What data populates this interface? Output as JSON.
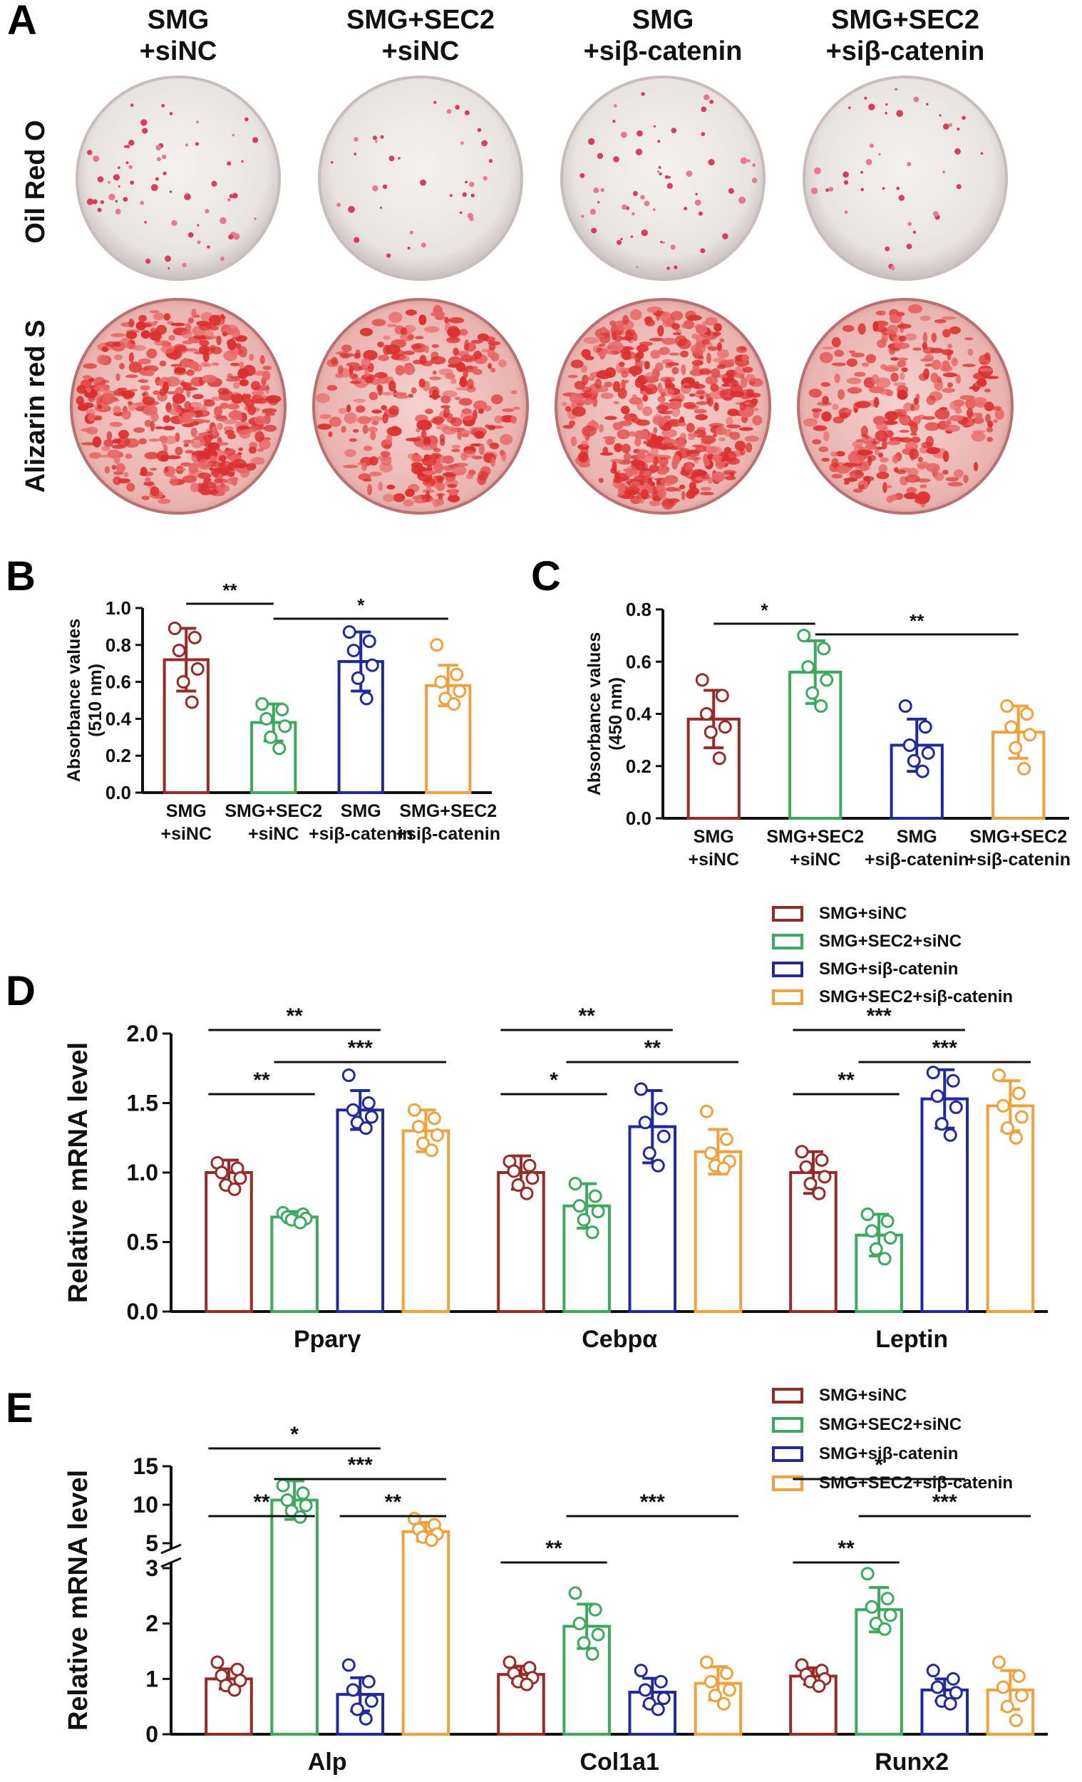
{
  "colors": {
    "siNC": "#9b2a26",
    "sec2": "#3aaa5c",
    "sibcat": "#1f2aa0",
    "sec2sibcat": "#f2a13a",
    "axis": "#111111"
  },
  "panelA": {
    "letter": "A",
    "columns": [
      [
        "SMG",
        "+siNC"
      ],
      [
        "SMG+SEC2",
        "+siNC"
      ],
      [
        "SMG",
        "+siβ-catenin"
      ],
      [
        "SMG+SEC2",
        "+siβ-catenin"
      ]
    ],
    "rows": [
      "Oil Red O",
      "Alizarin red S"
    ],
    "images": [
      {
        "row": 0,
        "stain": "oil-red-o",
        "density": 0.55
      },
      {
        "row": 0,
        "stain": "oil-red-o",
        "density": 0.3
      },
      {
        "row": 0,
        "stain": "oil-red-o",
        "density": 0.5
      },
      {
        "row": 0,
        "stain": "oil-red-o",
        "density": 0.35
      },
      {
        "row": 1,
        "stain": "alizarin-red-s",
        "density": 0.85
      },
      {
        "row": 1,
        "stain": "alizarin-red-s",
        "density": 0.6
      },
      {
        "row": 1,
        "stain": "alizarin-red-s",
        "density": 0.9
      },
      {
        "row": 1,
        "stain": "alizarin-red-s",
        "density": 0.55
      }
    ]
  },
  "chart_data": [
    {
      "panel": "B",
      "type": "bar",
      "ylabel": "Absorbance values (510 nm)",
      "ylim": [
        0,
        1.0
      ],
      "yticks": [
        "0.0",
        "0.2",
        "0.4",
        "0.6",
        "0.8",
        "1.0"
      ],
      "categories": [
        [
          "SMG",
          "+siNC"
        ],
        [
          "SMG+SEC2",
          "+siNC"
        ],
        [
          "SMG",
          "+siβ-catenin"
        ],
        [
          "SMG+SEC2",
          "+siβ-catenin"
        ]
      ],
      "values": [
        0.72,
        0.38,
        0.71,
        0.58
      ],
      "errors": [
        0.17,
        0.1,
        0.16,
        0.11
      ],
      "points": [
        [
          0.89,
          0.84,
          0.77,
          0.67,
          0.6,
          0.49
        ],
        [
          0.48,
          0.45,
          0.4,
          0.36,
          0.3,
          0.24
        ],
        [
          0.87,
          0.82,
          0.77,
          0.69,
          0.62,
          0.51
        ],
        [
          0.8,
          0.64,
          0.6,
          0.55,
          0.51,
          0.48
        ]
      ],
      "significance": [
        {
          "from": 0,
          "to": 1,
          "label": "**"
        },
        {
          "from": 1,
          "to": 3,
          "label": "*"
        }
      ]
    },
    {
      "panel": "C",
      "type": "bar",
      "ylabel": "Absorbance values (450 nm)",
      "ylim": [
        0,
        0.8
      ],
      "yticks": [
        "0.0",
        "0.2",
        "0.4",
        "0.6",
        "0.8"
      ],
      "categories": [
        [
          "SMG",
          "+siNC"
        ],
        [
          "SMG+SEC2",
          "+siNC"
        ],
        [
          "SMG",
          "+siβ-catenin"
        ],
        [
          "SMG+SEC2",
          "+siβ-catenin"
        ]
      ],
      "values": [
        0.38,
        0.56,
        0.28,
        0.33
      ],
      "errors": [
        0.11,
        0.12,
        0.1,
        0.1
      ],
      "points": [
        [
          0.53,
          0.47,
          0.4,
          0.35,
          0.33,
          0.23
        ],
        [
          0.7,
          0.65,
          0.58,
          0.53,
          0.48,
          0.43
        ],
        [
          0.43,
          0.35,
          0.28,
          0.25,
          0.22,
          0.18
        ],
        [
          0.43,
          0.4,
          0.35,
          0.32,
          0.27,
          0.19
        ]
      ],
      "significance": [
        {
          "from": 0,
          "to": 1,
          "label": "*"
        },
        {
          "from": 1,
          "to": 3,
          "label": "**"
        }
      ]
    },
    {
      "panel": "D",
      "type": "bar",
      "ylabel": "Relative mRNA level",
      "ylim": [
        0,
        2.0
      ],
      "yticks": [
        "0.0",
        "0.5",
        "1.0",
        "1.5",
        "2.0"
      ],
      "groups": [
        "Pparγ",
        "Cebpα",
        "Leptin"
      ],
      "series": [
        {
          "name": "SMG+siNC",
          "values": [
            1.0,
            1.0,
            1.0
          ],
          "errors": [
            0.09,
            0.12,
            0.15
          ],
          "points": [
            [
              1.07,
              1.03,
              1.0,
              0.96,
              0.91,
              0.88
            ],
            [
              1.08,
              1.05,
              1.01,
              0.96,
              0.91,
              0.85
            ],
            [
              1.15,
              1.09,
              1.04,
              0.97,
              0.92,
              0.85
            ]
          ]
        },
        {
          "name": "SMG+SEC2+siNC",
          "values": [
            0.68,
            0.76,
            0.55
          ],
          "errors": [
            0.04,
            0.16,
            0.15
          ],
          "points": [
            [
              0.71,
              0.7,
              0.68,
              0.67,
              0.66,
              0.64
            ],
            [
              0.92,
              0.83,
              0.76,
              0.72,
              0.66,
              0.57
            ],
            [
              0.7,
              0.65,
              0.58,
              0.53,
              0.45,
              0.38
            ]
          ]
        },
        {
          "name": "SMG+siβ-catenin",
          "values": [
            1.45,
            1.33,
            1.53
          ],
          "errors": [
            0.14,
            0.26,
            0.21
          ],
          "points": [
            [
              1.7,
              1.5,
              1.45,
              1.4,
              1.36,
              1.32
            ],
            [
              1.6,
              1.46,
              1.36,
              1.26,
              1.14,
              1.05
            ],
            [
              1.72,
              1.66,
              1.55,
              1.47,
              1.35,
              1.27
            ]
          ]
        },
        {
          "name": "SMG+SEC2+siβ-catenin",
          "values": [
            1.3,
            1.15,
            1.48
          ],
          "errors": [
            0.15,
            0.16,
            0.18
          ],
          "points": [
            [
              1.45,
              1.39,
              1.33,
              1.27,
              1.21,
              1.16
            ],
            [
              1.44,
              1.24,
              1.14,
              1.08,
              1.05,
              1.03
            ],
            [
              1.7,
              1.57,
              1.48,
              1.4,
              1.32,
              1.25
            ]
          ]
        }
      ],
      "significance": [
        {
          "group": 0,
          "from": 0,
          "to": 2,
          "label": "**",
          "level": 2
        },
        {
          "group": 0,
          "from": 1,
          "to": 3,
          "label": "***",
          "level": 1
        },
        {
          "group": 0,
          "from": 0,
          "to": 1,
          "label": "**",
          "level": 0
        },
        {
          "group": 1,
          "from": 0,
          "to": 2,
          "label": "**",
          "level": 2
        },
        {
          "group": 1,
          "from": 1,
          "to": 3,
          "label": "**",
          "level": 1
        },
        {
          "group": 1,
          "from": 0,
          "to": 1,
          "label": "*",
          "level": 0
        },
        {
          "group": 2,
          "from": 0,
          "to": 2,
          "label": "***",
          "level": 2
        },
        {
          "group": 2,
          "from": 1,
          "to": 3,
          "label": "***",
          "level": 1
        },
        {
          "group": 2,
          "from": 0,
          "to": 1,
          "label": "**",
          "level": 0
        }
      ]
    },
    {
      "panel": "E",
      "type": "bar",
      "ylabel": "Relative mRNA level",
      "yaxis_break": {
        "lower": [
          0,
          3
        ],
        "upper": [
          5,
          15
        ]
      },
      "yticks_lower": [
        "0",
        "1",
        "2",
        "3"
      ],
      "yticks_upper": [
        "5",
        "10",
        "15"
      ],
      "groups": [
        "Alp",
        "Col1a1",
        "Runx2"
      ],
      "series": [
        {
          "name": "SMG+siNC",
          "values": [
            1.0,
            1.08,
            1.05
          ],
          "errors": [
            0.18,
            0.15,
            0.15
          ],
          "points": [
            [
              1.3,
              1.17,
              1.06,
              0.97,
              0.88,
              0.8
            ],
            [
              1.3,
              1.2,
              1.1,
              1.02,
              0.95,
              0.9
            ],
            [
              1.25,
              1.15,
              1.08,
              1.0,
              0.95,
              0.87
            ]
          ]
        },
        {
          "name": "SMG+SEC2+siNC",
          "values": [
            10.6,
            1.95,
            2.25
          ],
          "errors": [
            2.5,
            0.4,
            0.4
          ],
          "points": [
            [
              12.5,
              11.5,
              10.6,
              9.9,
              9.2,
              8.4
            ],
            [
              2.55,
              2.25,
              2.0,
              1.8,
              1.65,
              1.45
            ],
            [
              2.9,
              2.45,
              2.3,
              2.15,
              2.0,
              1.9
            ]
          ]
        },
        {
          "name": "SMG+siβ-catenin",
          "values": [
            0.72,
            0.76,
            0.8
          ],
          "errors": [
            0.3,
            0.25,
            0.2
          ],
          "points": [
            [
              1.25,
              0.95,
              0.8,
              0.6,
              0.45,
              0.28
            ],
            [
              1.15,
              0.95,
              0.8,
              0.65,
              0.55,
              0.45
            ],
            [
              1.15,
              1.0,
              0.85,
              0.75,
              0.6,
              0.55
            ]
          ]
        },
        {
          "name": "SMG+SEC2+siβ-catenin",
          "values": [
            6.5,
            0.92,
            0.8
          ],
          "errors": [
            1.2,
            0.3,
            0.35
          ],
          "points": [
            [
              8.2,
              7.4,
              6.8,
              6.2,
              5.8,
              5.4
            ],
            [
              1.3,
              1.1,
              0.95,
              0.8,
              0.7,
              0.55
            ],
            [
              1.3,
              1.05,
              0.85,
              0.7,
              0.5,
              0.25
            ]
          ]
        }
      ],
      "significance": [
        {
          "group": 0,
          "from": 0,
          "to": 2,
          "label": "*",
          "level": 3
        },
        {
          "group": 0,
          "from": 1,
          "to": 3,
          "label": "***",
          "level": 2
        },
        {
          "group": 0,
          "from": 0,
          "to": 1,
          "label": "**",
          "level": 1
        },
        {
          "group": 0,
          "from": 2,
          "to": 3,
          "label": "**",
          "level": 1
        },
        {
          "group": 1,
          "from": 0,
          "to": 1,
          "label": "**",
          "level": 0
        },
        {
          "group": 1,
          "from": 1,
          "to": 3,
          "label": "***",
          "level": 1
        },
        {
          "group": 2,
          "from": 0,
          "to": 2,
          "label": "*",
          "level": 2
        },
        {
          "group": 2,
          "from": 1,
          "to": 3,
          "label": "***",
          "level": 1
        },
        {
          "group": 2,
          "from": 0,
          "to": 1,
          "label": "**",
          "level": 0
        }
      ]
    }
  ],
  "legend": [
    "SMG+siNC",
    "SMG+SEC2+siNC",
    "SMG+siβ-catenin",
    "SMG+SEC2+siβ-catenin"
  ],
  "panel_letters": {
    "B": "B",
    "C": "C",
    "D": "D",
    "E": "E"
  }
}
